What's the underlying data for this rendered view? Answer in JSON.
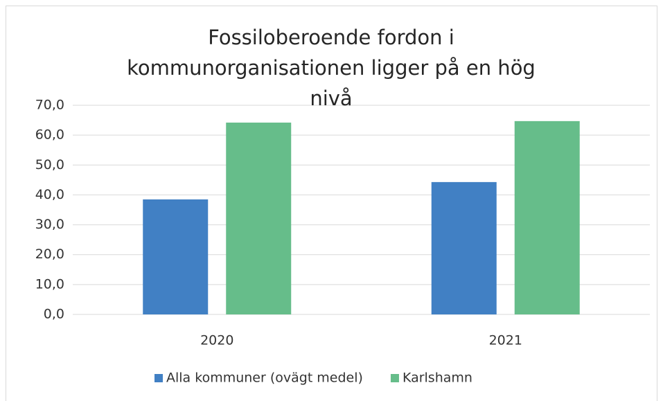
{
  "chart_data": {
    "type": "bar",
    "title": "Fossiloberoende fordon i kommunorganisationen ligger på en hög nivå",
    "categories": [
      "2020",
      "2021"
    ],
    "series": [
      {
        "name": "Alla kommuner (ovägt medel)",
        "color": "#4180c4",
        "values": [
          38.5,
          44.3
        ]
      },
      {
        "name": "Karlshamn",
        "color": "#66bd8a",
        "values": [
          64.2,
          64.7
        ]
      }
    ],
    "ylim": [
      0,
      70
    ],
    "yticks": [
      {
        "value": 0,
        "label": "0,0"
      },
      {
        "value": 10,
        "label": "10,0"
      },
      {
        "value": 20,
        "label": "20,0"
      },
      {
        "value": 30,
        "label": "30,0"
      },
      {
        "value": 40,
        "label": "40,0"
      },
      {
        "value": 50,
        "label": "50,0"
      },
      {
        "value": 60,
        "label": "60,0"
      },
      {
        "value": 70,
        "label": "70,0"
      }
    ],
    "grid": true,
    "legend": "bottom"
  }
}
